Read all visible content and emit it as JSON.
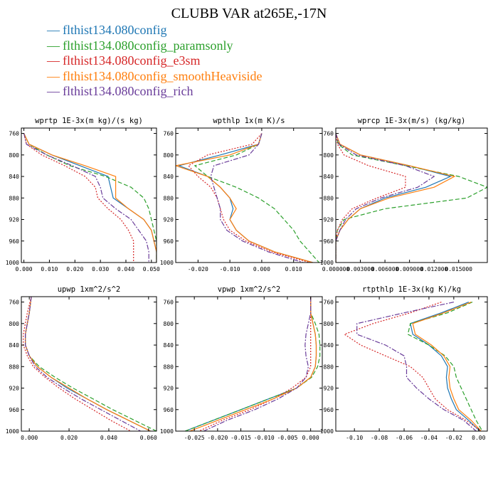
{
  "title": "CLUBB VAR at265E,-17N",
  "colors": {
    "blue": "#1f77b4",
    "green": "#2ca02c",
    "red": "#d62728",
    "orange": "#ff7f0e",
    "purple": "#6a3d9a"
  },
  "legend": [
    {
      "label": "flthist134.080config",
      "color": "#1f77b4",
      "style": "solid"
    },
    {
      "label": "flthist134.080config_paramsonly",
      "color": "#2ca02c",
      "style": "dashed"
    },
    {
      "label": "flthist134.080config_e3sm",
      "color": "#d62728",
      "style": "dotted"
    },
    {
      "label": "flthist134.080config_smoothHeaviside",
      "color": "#ff7f0e",
      "style": "solid"
    },
    {
      "label": "flthist134.080config_rich",
      "color": "#6a3d9a",
      "style": "dashdot"
    }
  ],
  "chart_data": [
    {
      "type": "line",
      "title": "wprtp  1E-3x(m kg)/(s kg)",
      "ylim": [
        1000,
        750
      ],
      "xlim": [
        -0.001,
        0.052
      ],
      "xticks": [
        "0.000",
        "0.010",
        "0.020",
        "0.030",
        "0.040",
        "0.050"
      ],
      "xtick_values": [
        0,
        0.01,
        0.02,
        0.03,
        0.04,
        0.05
      ],
      "yticks": [
        760,
        800,
        840,
        880,
        920,
        960,
        1000
      ],
      "y": [
        760,
        780,
        800,
        820,
        840,
        860,
        880,
        900,
        920,
        940,
        960,
        980,
        1000
      ],
      "series": [
        {
          "name": "flthist134.080config",
          "values": [
            0.0,
            0.002,
            0.011,
            0.022,
            0.033,
            0.034,
            0.035,
            0.041,
            0.047,
            0.05,
            0.051,
            0.052,
            0.052
          ]
        },
        {
          "name": "flthist134.080config_paramsonly",
          "values": [
            0.0,
            0.002,
            0.009,
            0.018,
            0.032,
            0.042,
            0.047,
            0.049,
            0.05,
            0.051,
            0.052,
            0.052,
            0.052
          ]
        },
        {
          "name": "flthist134.080config_e3sm",
          "values": [
            0.0,
            0.001,
            0.007,
            0.016,
            0.024,
            0.028,
            0.029,
            0.033,
            0.038,
            0.041,
            0.043,
            0.043,
            0.043
          ]
        },
        {
          "name": "flthist134.080config_smoothHeaviside",
          "values": [
            0.0,
            0.002,
            0.011,
            0.024,
            0.036,
            0.036,
            0.036,
            0.041,
            0.047,
            0.05,
            0.051,
            0.052,
            0.052
          ]
        },
        {
          "name": "flthist134.080config_rich",
          "values": [
            0.0,
            0.001,
            0.009,
            0.019,
            0.028,
            0.03,
            0.031,
            0.036,
            0.042,
            0.045,
            0.048,
            0.049,
            0.049
          ]
        }
      ]
    },
    {
      "type": "line",
      "title": "wpthlp  1x(m K)/s",
      "ylim": [
        1000,
        750
      ],
      "xlim": [
        -0.027,
        0.019
      ],
      "xticks": [
        "-0.020",
        "-0.010",
        "0.000",
        "0.010"
      ],
      "xtick_values": [
        -0.02,
        -0.01,
        0,
        0.01
      ],
      "yticks": [
        760,
        800,
        840,
        880,
        920,
        960,
        1000
      ],
      "y": [
        760,
        780,
        800,
        820,
        840,
        860,
        880,
        900,
        920,
        940,
        960,
        980,
        1000
      ],
      "series": [
        {
          "name": "flthist134.080config",
          "values": [
            0.0,
            -0.001,
            -0.013,
            -0.026,
            -0.017,
            -0.013,
            -0.01,
            -0.009,
            -0.01,
            -0.008,
            -0.004,
            0.004,
            0.016
          ]
        },
        {
          "name": "flthist134.080config_paramsonly",
          "values": [
            0.0,
            -0.001,
            -0.008,
            -0.021,
            -0.017,
            -0.008,
            -0.001,
            0.004,
            0.007,
            0.01,
            0.012,
            0.015,
            0.018
          ]
        },
        {
          "name": "flthist134.080config_e3sm",
          "values": [
            0.0,
            -0.003,
            -0.017,
            -0.023,
            -0.02,
            -0.016,
            -0.014,
            -0.013,
            -0.012,
            -0.01,
            -0.005,
            0.003,
            0.015
          ]
        },
        {
          "name": "flthist134.080config_smoothHeaviside",
          "values": [
            0.0,
            -0.001,
            -0.01,
            -0.027,
            -0.017,
            -0.013,
            -0.01,
            -0.008,
            -0.01,
            -0.008,
            -0.004,
            0.004,
            0.016
          ]
        },
        {
          "name": "flthist134.080config_rich",
          "values": [
            0.0,
            -0.001,
            -0.004,
            -0.015,
            -0.016,
            -0.015,
            -0.014,
            -0.013,
            -0.013,
            -0.011,
            -0.006,
            0.002,
            0.013
          ]
        }
      ]
    },
    {
      "type": "line",
      "title": "wprcp  1E-3x(m/s) (kg/kg)",
      "ylim": [
        1000,
        750
      ],
      "xlim": [
        0.0,
        0.0185
      ],
      "xticks": [
        "0.000000",
        "0.003000",
        "0.006000",
        "0.009000",
        "0.012000",
        "0.015000"
      ],
      "xtick_values": [
        0,
        0.003,
        0.006,
        0.009,
        0.012,
        0.015
      ],
      "yticks": [
        760,
        800,
        840,
        880,
        920,
        960,
        1000
      ],
      "y": [
        760,
        780,
        800,
        820,
        840,
        860,
        880,
        900,
        920,
        940,
        960,
        980,
        1000
      ],
      "series": [
        {
          "name": "flthist134.080config",
          "values": [
            0.0,
            0.0005,
            0.003,
            0.009,
            0.014,
            0.011,
            0.006,
            0.003,
            0.0015,
            0.0005,
            0.0,
            0.0,
            0.0
          ]
        },
        {
          "name": "flthist134.080config_paramsonly",
          "values": [
            0.0,
            0.0003,
            0.002,
            0.0085,
            0.015,
            0.0185,
            0.016,
            0.006,
            0.001,
            0.0002,
            0.0,
            0.0,
            0.0
          ]
        },
        {
          "name": "flthist134.080config_e3sm",
          "values": [
            0.0,
            0.0002,
            0.001,
            0.004,
            0.0085,
            0.0085,
            0.005,
            0.002,
            0.0008,
            0.0002,
            0.0,
            0.0,
            0.0
          ]
        },
        {
          "name": "flthist134.080config_smoothHeaviside",
          "values": [
            0.0,
            0.0005,
            0.003,
            0.009,
            0.0145,
            0.012,
            0.0065,
            0.003,
            0.0015,
            0.0005,
            0.0,
            0.0,
            0.0
          ]
        },
        {
          "name": "flthist134.080config_rich",
          "values": [
            0.0,
            0.0004,
            0.0025,
            0.0085,
            0.012,
            0.01,
            0.0055,
            0.0025,
            0.0012,
            0.0005,
            0.0,
            0.0,
            0.0
          ]
        }
      ]
    },
    {
      "type": "line",
      "title": "upwp  1xm^2/s^2",
      "ylim": [
        1000,
        750
      ],
      "xlim": [
        -0.004,
        0.064
      ],
      "xticks": [
        "0.000",
        "0.020",
        "0.040",
        "0.060"
      ],
      "xtick_values": [
        0,
        0.02,
        0.04,
        0.06
      ],
      "yticks": [
        760,
        800,
        840,
        880,
        920,
        960,
        1000
      ],
      "y": [
        750,
        780,
        800,
        820,
        840,
        860,
        880,
        900,
        920,
        940,
        960,
        980,
        1000
      ],
      "series": [
        {
          "name": "flthist134.080config",
          "values": [
            0.001,
            0.0,
            -0.001,
            -0.002,
            -0.002,
            0.0,
            0.004,
            0.011,
            0.019,
            0.029,
            0.039,
            0.05,
            0.061
          ]
        },
        {
          "name": "flthist134.080config_paramsonly",
          "values": [
            0.001,
            0.0,
            -0.001,
            -0.002,
            -0.002,
            0.0,
            0.005,
            0.013,
            0.022,
            0.032,
            0.042,
            0.053,
            0.064
          ]
        },
        {
          "name": "flthist134.080config_e3sm",
          "values": [
            0.001,
            -0.001,
            -0.002,
            -0.003,
            -0.003,
            -0.001,
            0.002,
            0.008,
            0.015,
            0.023,
            0.032,
            0.041,
            0.051
          ]
        },
        {
          "name": "flthist134.080config_smoothHeaviside",
          "values": [
            0.001,
            0.0,
            -0.001,
            -0.002,
            -0.002,
            0.0,
            0.004,
            0.011,
            0.02,
            0.029,
            0.039,
            0.05,
            0.061
          ]
        },
        {
          "name": "flthist134.080config_rich",
          "values": [
            0.001,
            0.0,
            -0.001,
            -0.002,
            -0.002,
            0.0,
            0.003,
            0.009,
            0.017,
            0.026,
            0.036,
            0.046,
            0.056
          ]
        }
      ]
    },
    {
      "type": "line",
      "title": "vpwp  1xm^2/s^2",
      "ylim": [
        1000,
        750
      ],
      "xlim": [
        -0.029,
        0.0025
      ],
      "xticks": [
        "-0.025",
        "-0.020",
        "-0.015",
        "-0.010",
        "-0.005",
        "0.000"
      ],
      "xtick_values": [
        -0.025,
        -0.02,
        -0.015,
        -0.01,
        -0.005,
        0
      ],
      "yticks": [
        760,
        800,
        840,
        880,
        920,
        960,
        1000
      ],
      "y": [
        750,
        780,
        800,
        820,
        840,
        860,
        880,
        900,
        920,
        940,
        960,
        980,
        1000
      ],
      "series": [
        {
          "name": "flthist134.080config",
          "values": [
            0.0,
            0.0,
            0.0005,
            0.001,
            0.0012,
            0.0012,
            0.001,
            0.0,
            -0.003,
            -0.009,
            -0.015,
            -0.021,
            -0.027
          ]
        },
        {
          "name": "flthist134.080config_paramsonly",
          "values": [
            0.0,
            0.0,
            0.001,
            0.0018,
            0.002,
            0.002,
            0.0015,
            0.0002,
            -0.003,
            -0.009,
            -0.015,
            -0.021,
            -0.027
          ]
        },
        {
          "name": "flthist134.080config_e3sm",
          "values": [
            0.0,
            0.0,
            0.0,
            0.0,
            0.0,
            0.0,
            0.0,
            -0.001,
            -0.004,
            -0.008,
            -0.013,
            -0.019,
            -0.024
          ]
        },
        {
          "name": "flthist134.080config_smoothHeaviside",
          "values": [
            0.0,
            0.0,
            0.0005,
            0.001,
            0.0012,
            0.0012,
            0.001,
            0.0,
            -0.003,
            -0.008,
            -0.014,
            -0.02,
            -0.026
          ]
        },
        {
          "name": "flthist134.080config_rich",
          "values": [
            0.0,
            0.0,
            -0.0005,
            -0.001,
            -0.0012,
            -0.001,
            -0.0005,
            -0.001,
            -0.003,
            -0.007,
            -0.012,
            -0.018,
            -0.023
          ]
        }
      ]
    },
    {
      "type": "line",
      "title": "rtpthlp  1E-3x(kg K)/kg",
      "ylim": [
        1000,
        750
      ],
      "xlim": [
        -0.115,
        0.007
      ],
      "xticks": [
        "-0.10",
        "-0.08",
        "-0.06",
        "-0.04",
        "-0.02",
        "0.00"
      ],
      "xtick_values": [
        -0.1,
        -0.08,
        -0.06,
        -0.04,
        -0.02,
        0
      ],
      "yticks": [
        760,
        800,
        840,
        880,
        920,
        960,
        1000
      ],
      "y": [
        760,
        780,
        800,
        820,
        840,
        860,
        880,
        900,
        920,
        940,
        960,
        980,
        1000
      ],
      "series": [
        {
          "name": "flthist134.080config",
          "values": [
            -0.008,
            -0.03,
            -0.055,
            -0.053,
            -0.04,
            -0.03,
            -0.025,
            -0.026,
            -0.025,
            -0.022,
            -0.018,
            -0.008,
            0.001
          ]
        },
        {
          "name": "flthist134.080config_paramsonly",
          "values": [
            -0.005,
            -0.025,
            -0.055,
            -0.057,
            -0.04,
            -0.027,
            -0.02,
            -0.018,
            -0.014,
            -0.01,
            -0.006,
            -0.002,
            0.003
          ]
        },
        {
          "name": "flthist134.080config_e3sm",
          "values": [
            -0.03,
            -0.055,
            -0.085,
            -0.108,
            -0.095,
            -0.075,
            -0.055,
            -0.045,
            -0.04,
            -0.035,
            -0.025,
            -0.01,
            0.002
          ]
        },
        {
          "name": "flthist134.080config_smoothHeaviside",
          "values": [
            -0.006,
            -0.028,
            -0.053,
            -0.051,
            -0.038,
            -0.028,
            -0.023,
            -0.024,
            -0.023,
            -0.02,
            -0.016,
            -0.006,
            0.002
          ]
        },
        {
          "name": "flthist134.080config_rich",
          "values": [
            -0.02,
            -0.06,
            -0.098,
            -0.098,
            -0.075,
            -0.06,
            -0.058,
            -0.058,
            -0.05,
            -0.04,
            -0.028,
            -0.012,
            -0.002
          ]
        }
      ]
    }
  ]
}
